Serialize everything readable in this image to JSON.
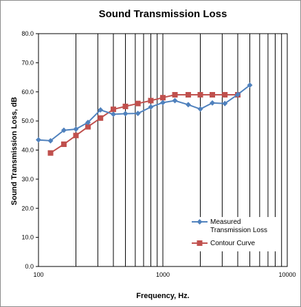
{
  "chart_data": {
    "type": "line",
    "title": "Sound Transmission Loss",
    "xlabel": "Frequency, Hz.",
    "ylabel": "Sound Transmission Loss, dB",
    "x_scale": "log",
    "xlim": [
      100,
      10000
    ],
    "ylim": [
      0,
      80
    ],
    "x_tick_labels": [
      "100",
      "1000",
      "10000"
    ],
    "y_tick_labels": [
      "0.0",
      "10.0",
      "20.0",
      "30.0",
      "40.0",
      "50.0",
      "60.0",
      "70.0",
      "80.0"
    ],
    "grid": "vertical log gridlines",
    "legend_position": "bottom-right",
    "series": [
      {
        "name": "Measured Transmission Loss",
        "color": "#4f81bd",
        "marker": "diamond",
        "x": [
          100,
          125,
          160,
          200,
          250,
          315,
          400,
          500,
          630,
          800,
          1000,
          1250,
          1600,
          2000,
          2500,
          3150,
          4000,
          5000
        ],
        "y": [
          43.5,
          43.2,
          46.8,
          47.2,
          49.5,
          53.8,
          52.3,
          52.5,
          52.6,
          54.8,
          56.3,
          57.0,
          55.6,
          54.1,
          56.2,
          56.0,
          59.1,
          62.3
        ]
      },
      {
        "name": "Contour Curve",
        "color": "#c0504d",
        "marker": "square",
        "x": [
          125,
          160,
          200,
          250,
          315,
          400,
          500,
          630,
          800,
          1000,
          1250,
          1600,
          2000,
          2500,
          3150,
          4000
        ],
        "y": [
          39,
          42,
          45,
          48,
          51,
          54,
          55,
          56,
          57,
          58,
          59,
          59,
          59,
          59,
          59,
          59
        ]
      }
    ]
  }
}
